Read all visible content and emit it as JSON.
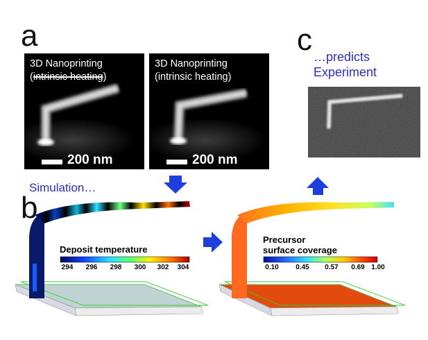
{
  "panels": {
    "a": "a",
    "b": "b",
    "c": "c"
  },
  "sem_left": {
    "line1": "3D Nanoprinting",
    "line2_open": "(",
    "line2_struck": "intrinsic heating",
    "line2_close": ")",
    "scale_label": "200 nm"
  },
  "sem_right": {
    "line1": "3D Nanoprinting",
    "line2": "(intrinsic heating)",
    "scale_label": "200 nm"
  },
  "predicts": {
    "line1": "…predicts",
    "line2": "Experiment"
  },
  "simulation_label": "Simulation…",
  "temperature_legend": {
    "title": "Deposit temperature",
    "ticks": [
      "294",
      "296",
      "298",
      "300",
      "302",
      "304"
    ]
  },
  "coverage_legend": {
    "title_line1": "Precursor",
    "title_line2": "surface coverage",
    "ticks": [
      "0.10",
      "0.45",
      "0.57",
      "0.69",
      "1.00"
    ]
  },
  "colors": {
    "arrow": "#1e3fdc",
    "text_blue": "#2d2db8",
    "substrate_left": "#bfd4d2",
    "substrate_right": "#e34a0e"
  }
}
